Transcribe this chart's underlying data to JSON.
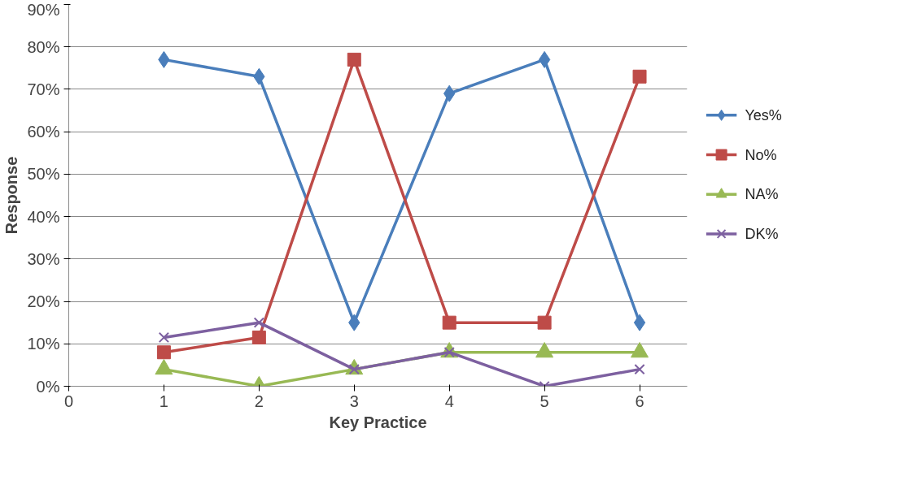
{
  "chart_data": {
    "type": "line",
    "xlabel": "Key Practice",
    "ylabel": "Response",
    "x": [
      1,
      2,
      3,
      4,
      5,
      6
    ],
    "series": [
      {
        "name": "Yes%",
        "color": "#4a7ebb",
        "marker": "diamond",
        "values": [
          77,
          73,
          15,
          69,
          77,
          15
        ]
      },
      {
        "name": "No%",
        "color": "#be4b48",
        "marker": "square",
        "values": [
          8,
          11.5,
          77,
          15,
          15,
          73
        ]
      },
      {
        "name": "NA%",
        "color": "#98b954",
        "marker": "triangle",
        "values": [
          4,
          0,
          4,
          8,
          8,
          8
        ]
      },
      {
        "name": "DK%",
        "color": "#7d60a0",
        "marker": "x",
        "values": [
          11.5,
          15,
          4,
          8,
          0,
          4
        ]
      }
    ],
    "xlim": [
      0,
      6.5
    ],
    "xticks": [
      0,
      1,
      2,
      3,
      4,
      5,
      6
    ],
    "ylim": [
      0,
      90
    ],
    "yticks": [
      {
        "value": 0,
        "label": "0%"
      },
      {
        "value": 10,
        "label": "10%"
      },
      {
        "value": 20,
        "label": "20%"
      },
      {
        "value": 30,
        "label": "30%"
      },
      {
        "value": 40,
        "label": "40%"
      },
      {
        "value": 50,
        "label": "50%"
      },
      {
        "value": 60,
        "label": "60%"
      },
      {
        "value": 70,
        "label": "70%"
      },
      {
        "value": 80,
        "label": "80%"
      },
      {
        "value": 90,
        "label": "90%"
      }
    ],
    "grid": "y",
    "legend": "right",
    "line_style": "solid"
  }
}
